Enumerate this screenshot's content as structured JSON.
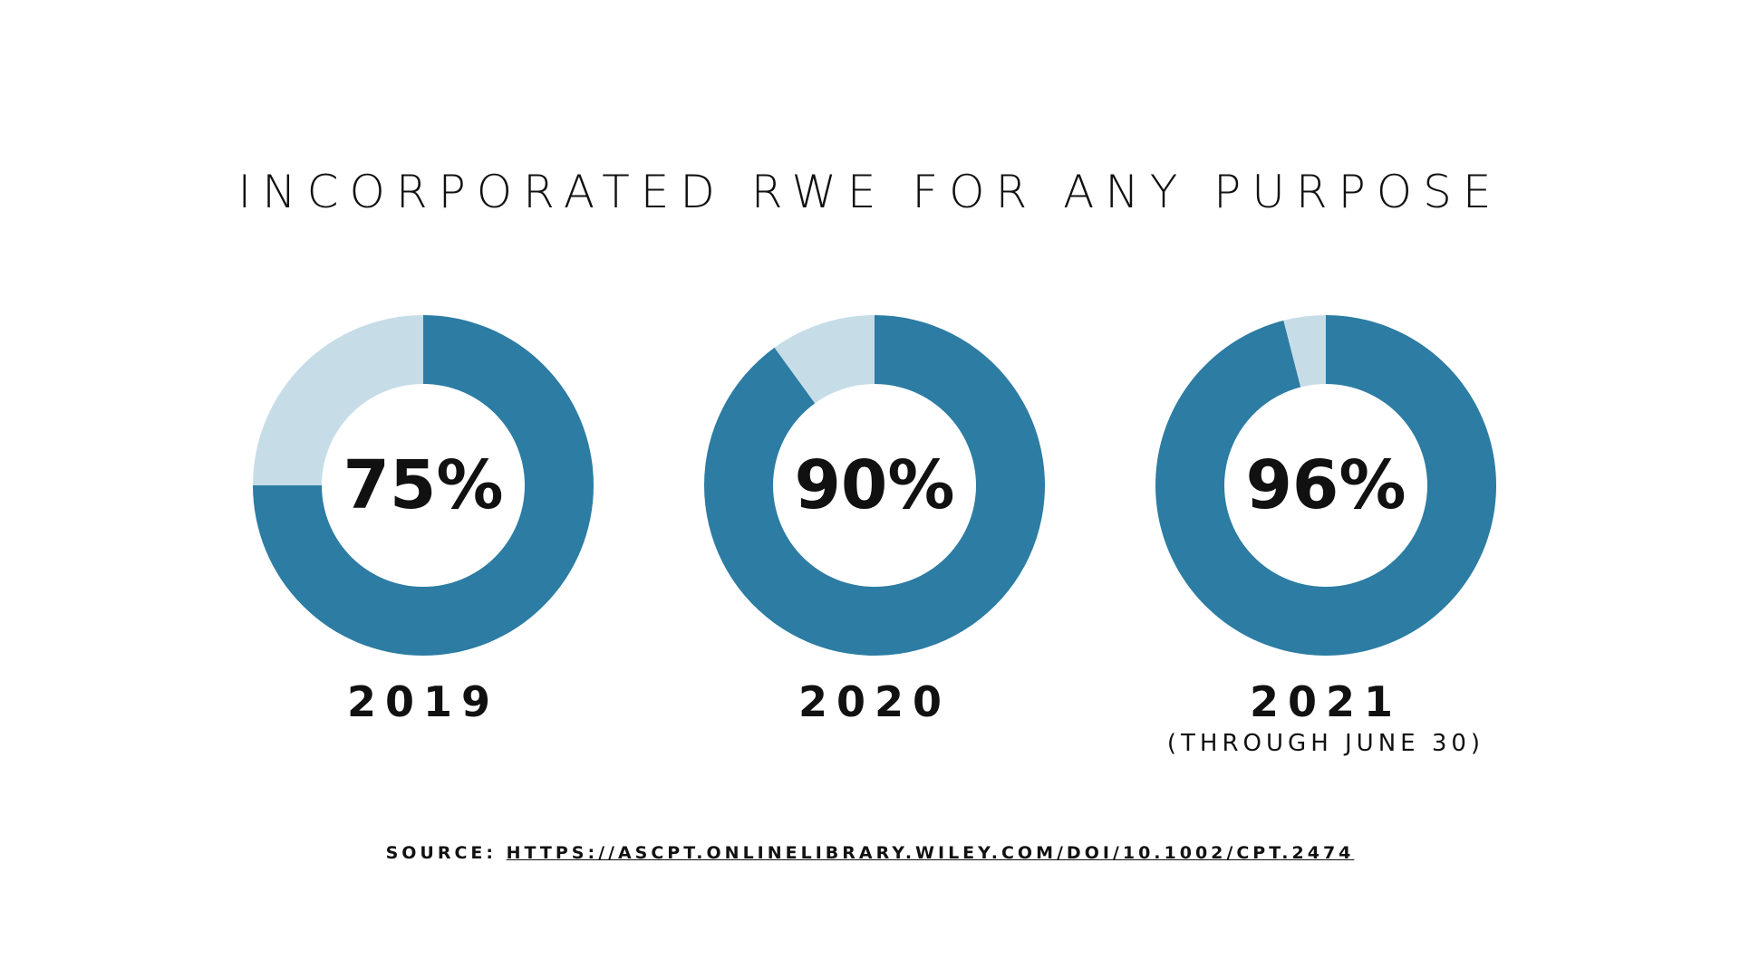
{
  "title": "INCORPORATED RWE FOR ANY PURPOSE",
  "colors": {
    "filled": "#2c7ca3",
    "remainder": "#c6dde8",
    "background": "#ffffff",
    "text": "#111111"
  },
  "chart_data": [
    {
      "type": "pie",
      "variant": "donut",
      "category": "2019",
      "value": 75,
      "label": "75%",
      "note": ""
    },
    {
      "type": "pie",
      "variant": "donut",
      "category": "2020",
      "value": 90,
      "label": "90%",
      "note": ""
    },
    {
      "type": "pie",
      "variant": "donut",
      "category": "2021",
      "value": 96,
      "label": "96%",
      "note": "(THROUGH JUNE 30)"
    }
  ],
  "source": {
    "prefix": "SOURCE: ",
    "link_text": "HTTPS://ASCPT.ONLINELIBRARY.WILEY.COM/DOI/10.1002/CPT.2474"
  }
}
